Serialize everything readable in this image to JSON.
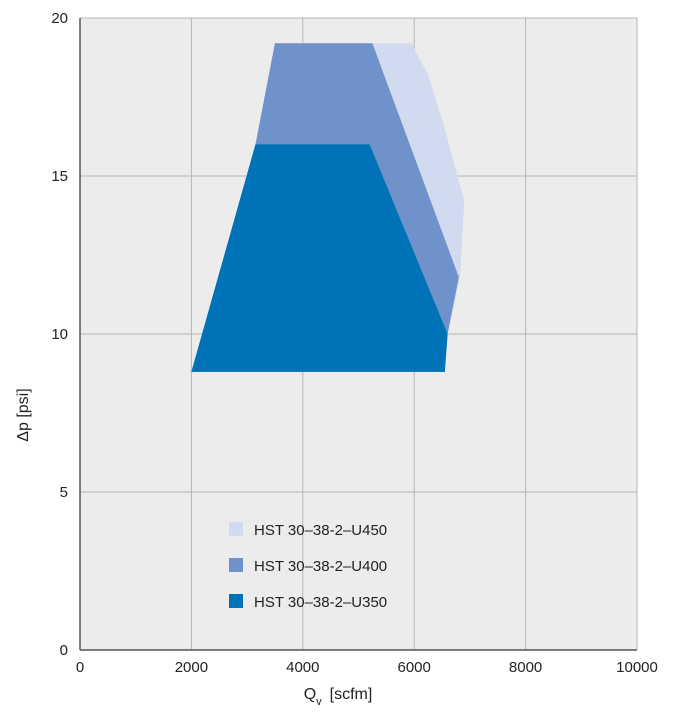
{
  "chart_data": {
    "type": "area",
    "title": "",
    "xlabel": "Q",
    "xlabel_subscript": "v",
    "xlabel_unit": "[scfm]",
    "ylabel": "Δp [psi]",
    "xlim": [
      0,
      10000
    ],
    "ylim": [
      0,
      20
    ],
    "x_ticks": [
      "0",
      "2000",
      "4000",
      "6000",
      "8000",
      "10000"
    ],
    "y_ticks": [
      "0",
      "5",
      "10",
      "15",
      "20"
    ],
    "grid": true,
    "legend_position": "lower-center",
    "series": [
      {
        "name": "HST 30–38-2–U450",
        "color": "#d2daef",
        "points": [
          [
            3500,
            19.2
          ],
          [
            5950,
            19.2
          ],
          [
            6250,
            18.2
          ],
          [
            6550,
            16.5
          ],
          [
            6900,
            14.2
          ],
          [
            6820,
            11.8
          ],
          [
            6600,
            10.0
          ],
          [
            6550,
            8.8
          ],
          [
            2000,
            8.8
          ],
          [
            3150,
            16.0
          ]
        ]
      },
      {
        "name": "HST 30–38-2–U400",
        "color": "#6e92c9",
        "points": [
          [
            3500,
            19.2
          ],
          [
            5250,
            19.2
          ],
          [
            6800,
            11.8
          ],
          [
            6600,
            10.0
          ],
          [
            6550,
            8.8
          ],
          [
            2000,
            8.8
          ],
          [
            3150,
            16.0
          ]
        ]
      },
      {
        "name": "HST 30–38-2–U350",
        "color": "#0072b8",
        "points": [
          [
            3150,
            16.0
          ],
          [
            5200,
            16.0
          ],
          [
            6600,
            10.0
          ],
          [
            6550,
            8.8
          ],
          [
            2000,
            8.8
          ]
        ]
      }
    ]
  }
}
